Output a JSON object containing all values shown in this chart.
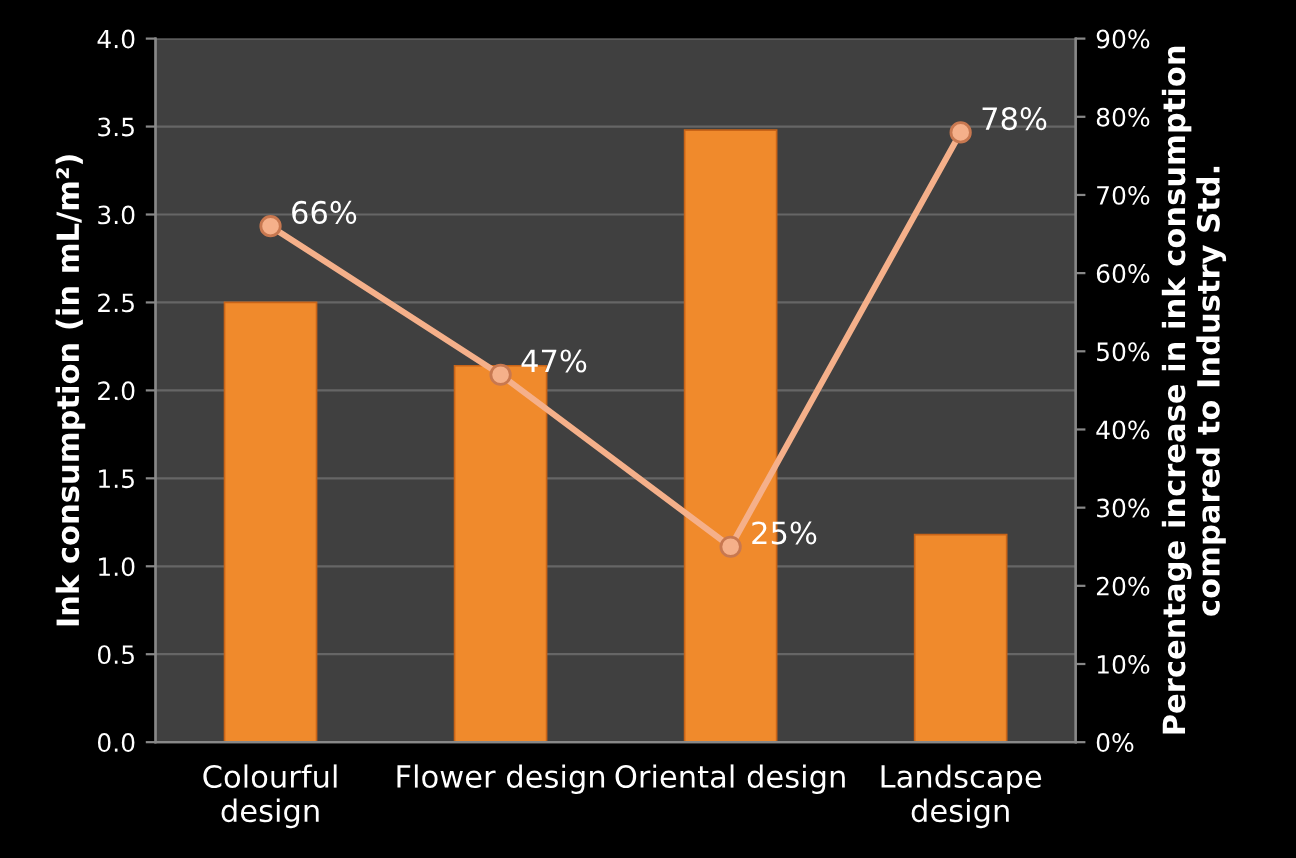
{
  "chart_data": {
    "type": "bar",
    "categories": [
      "Colourful\ndesign",
      "Flower design",
      "Oriental design",
      "Landscape\ndesign"
    ],
    "ylabel": "Ink consumption (in mL/m²)",
    "y2label": "Percentage increase in ink consumption\ncompared to Industry Std.",
    "ylim": [
      0,
      4
    ],
    "yticks": [
      {
        "value": 0,
        "label": "0.0"
      },
      {
        "value": 0.5,
        "label": "0.5"
      },
      {
        "value": 1,
        "label": "1.0"
      },
      {
        "value": 1.5,
        "label": "1.5"
      },
      {
        "value": 2,
        "label": "2.0"
      },
      {
        "value": 2.5,
        "label": "2.5"
      },
      {
        "value": 3,
        "label": "3.0"
      },
      {
        "value": 3.5,
        "label": "3.5"
      },
      {
        "value": 4,
        "label": "4.0"
      }
    ],
    "y2lim": [
      0,
      90
    ],
    "y2ticks": [
      {
        "value": 0,
        "label": "0%"
      },
      {
        "value": 10,
        "label": "10%"
      },
      {
        "value": 20,
        "label": "20%"
      },
      {
        "value": 30,
        "label": "30%"
      },
      {
        "value": 40,
        "label": "40%"
      },
      {
        "value": 50,
        "label": "50%"
      },
      {
        "value": 60,
        "label": "60%"
      },
      {
        "value": 70,
        "label": "70%"
      },
      {
        "value": 80,
        "label": "80%"
      },
      {
        "value": 90,
        "label": "90%"
      }
    ],
    "grid": "y",
    "series": [
      {
        "color": "#f08a2c",
        "values": [
          2.5,
          2.14,
          3.48,
          1.18
        ]
      },
      {
        "type": "line",
        "axis": "y2",
        "color": "#f5b08a",
        "marker": "circle",
        "values": [
          66,
          47,
          25,
          78
        ],
        "value_labels": [
          "66%",
          "47%",
          "25%",
          "78%"
        ]
      }
    ]
  }
}
